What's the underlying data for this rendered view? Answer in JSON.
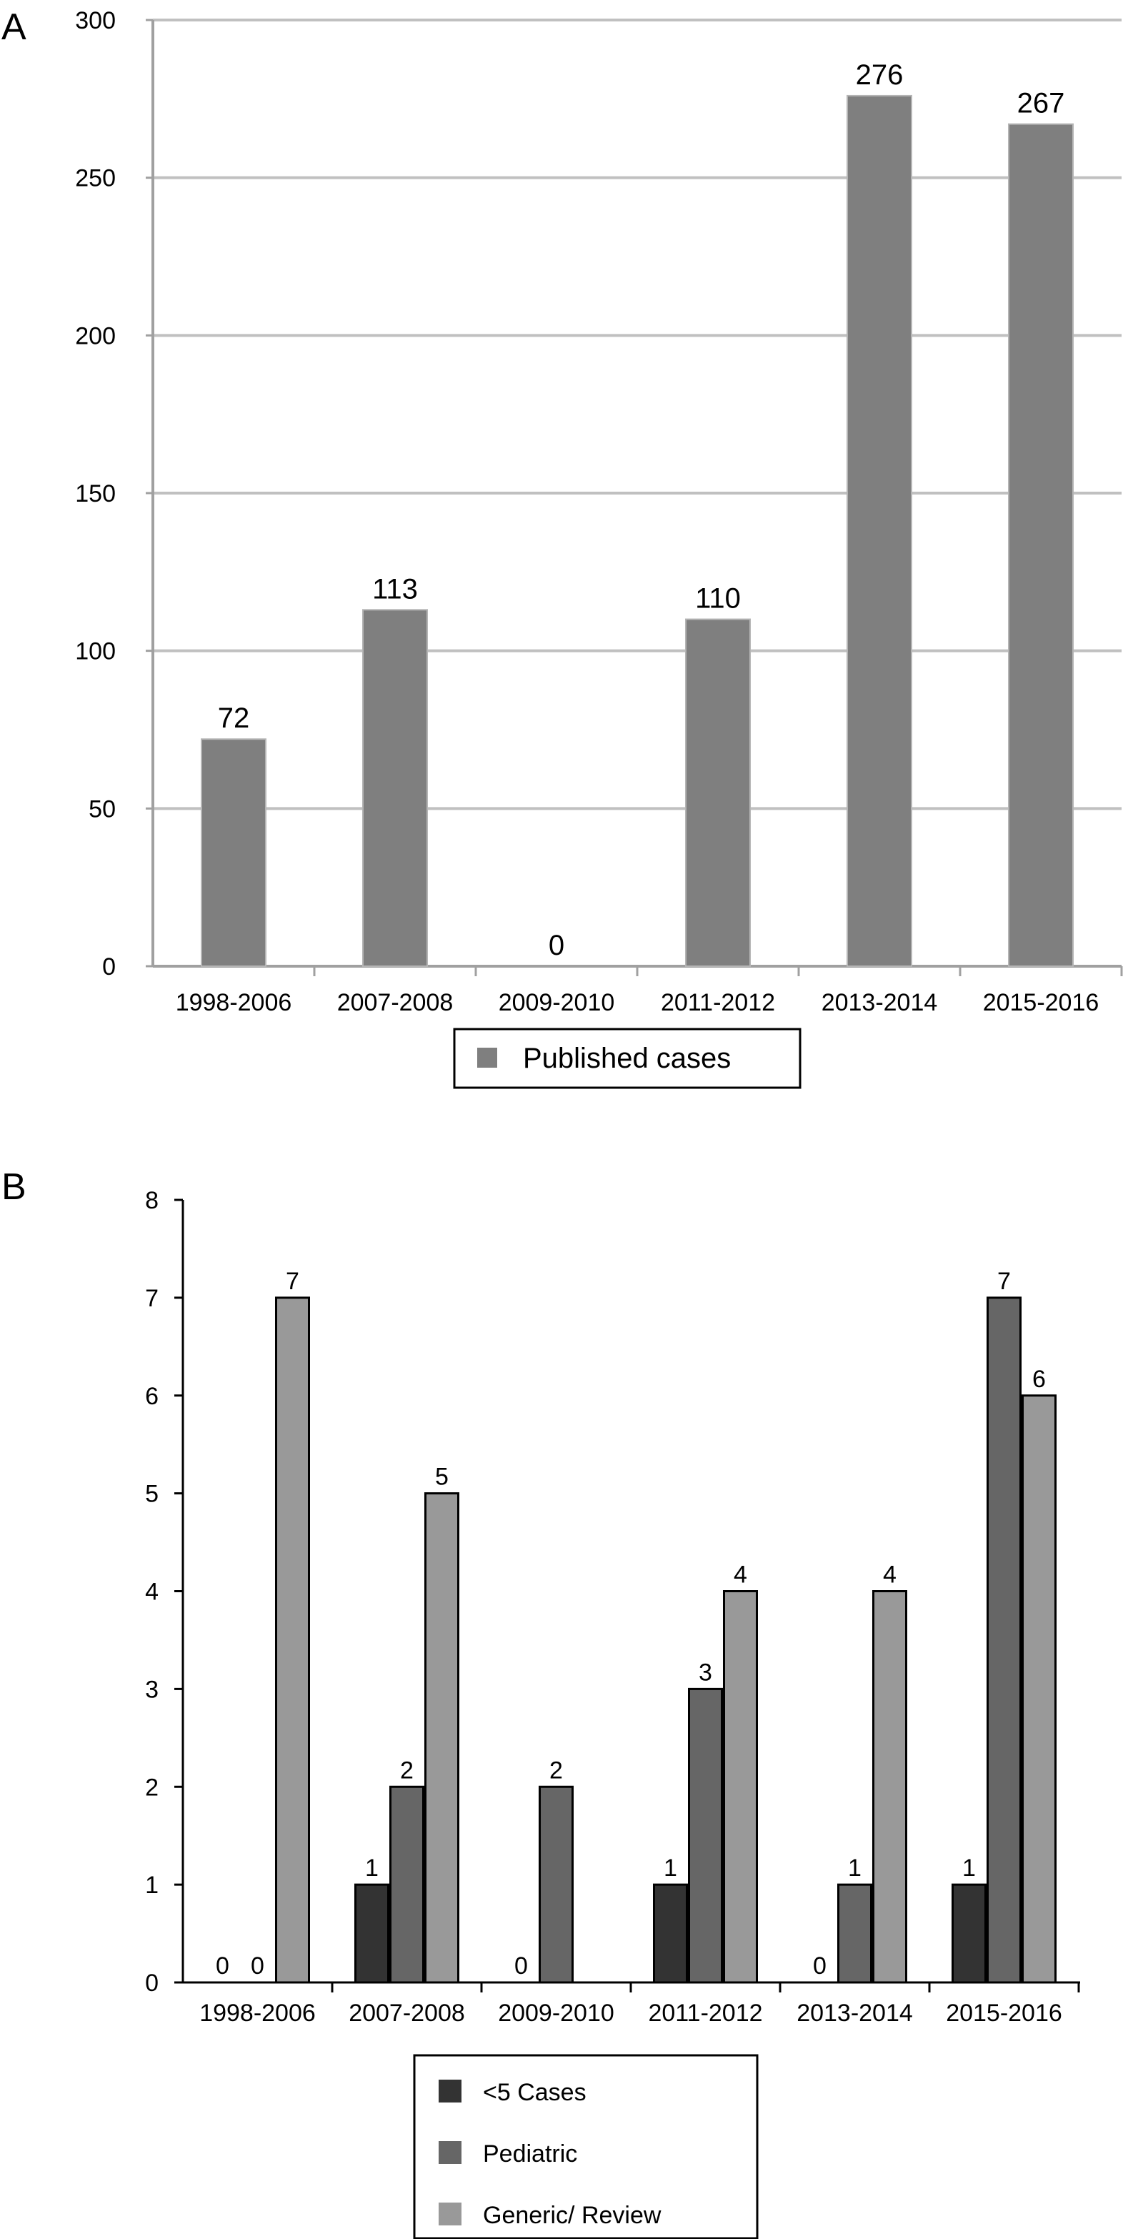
{
  "chart_data": [
    {
      "panel_label": "A",
      "type": "bar",
      "categories": [
        "1998-2006",
        "2007-2008",
        "2009-2010",
        "2011-2012",
        "2013-2014",
        "2015-2016"
      ],
      "series": [
        {
          "name": "Published cases",
          "values": [
            72,
            113,
            0,
            110,
            276,
            267
          ],
          "color": "#7f7f7f"
        }
      ],
      "title": "",
      "xlabel": "",
      "ylabel": "",
      "ylim": [
        0,
        300
      ],
      "yticks": [
        0,
        50,
        100,
        150,
        200,
        250,
        300
      ],
      "grid": "horizontal",
      "legend_position": "bottom"
    },
    {
      "panel_label": "B",
      "type": "bar",
      "categories": [
        "1998-2006",
        "2007-2008",
        "2009-2010",
        "2011-2012",
        "2013-2014",
        "2015-2016"
      ],
      "series": [
        {
          "name": "<5 Cases",
          "values": [
            0,
            1,
            null,
            1,
            null,
            1
          ],
          "labels": [
            "0",
            "1",
            "",
            "1",
            "",
            "1"
          ],
          "color": "#333333"
        },
        {
          "name": "Pediatric",
          "values": [
            0,
            2,
            2,
            3,
            1,
            7
          ],
          "labels": [
            "0",
            "2",
            "2",
            "3",
            "1",
            "7"
          ],
          "color": "#666666"
        },
        {
          "name": "Generic/ Review",
          "values": [
            7,
            5,
            null,
            4,
            4,
            6
          ],
          "labels": [
            "7",
            "5",
            "",
            "4",
            "4",
            "6"
          ],
          "color": "#999999"
        }
      ],
      "extra_labels": [
        {
          "category": "2009-2010",
          "text": "0"
        },
        {
          "category": "2013-2014",
          "text": "0"
        }
      ],
      "title": "",
      "xlabel": "",
      "ylabel": "",
      "ylim": [
        0,
        8
      ],
      "yticks": [
        0,
        1,
        2,
        3,
        4,
        5,
        6,
        7,
        8
      ],
      "grid": "none",
      "legend_position": "bottom"
    }
  ]
}
